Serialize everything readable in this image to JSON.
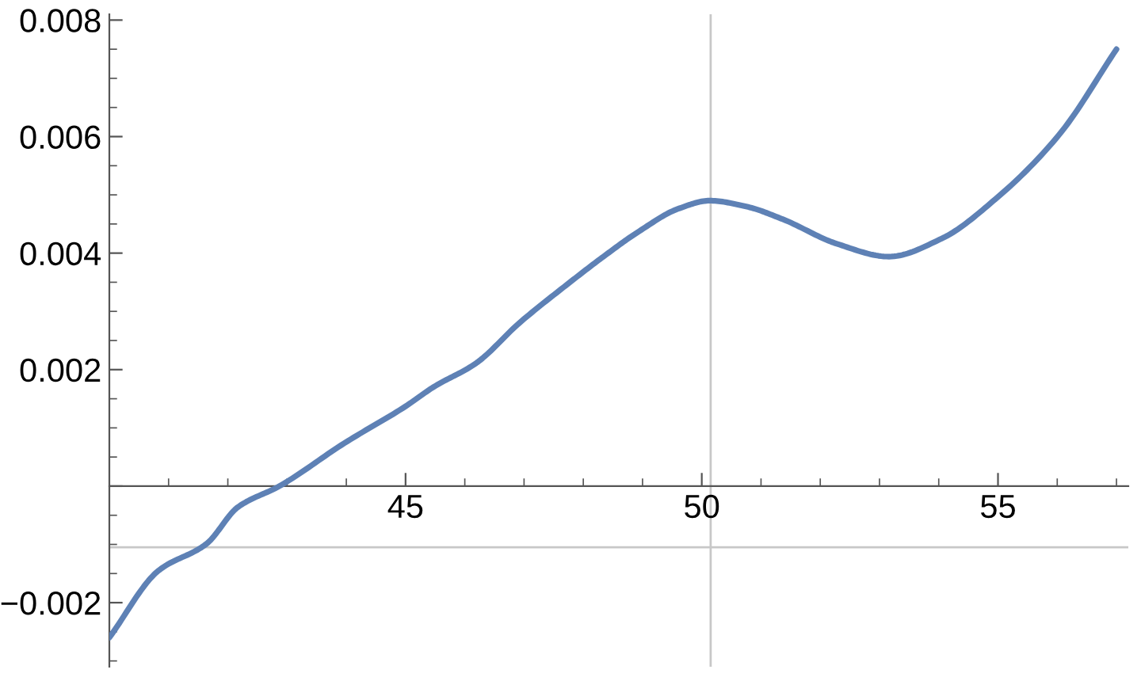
{
  "chart_data": {
    "type": "line",
    "x": [
      40.0,
      40.83,
      41.64,
      42.17,
      42.87,
      43.97,
      45.0,
      45.47,
      46.19,
      46.92,
      47.75,
      48.34,
      48.95,
      49.6,
      50.13,
      50.75,
      51.37,
      52.28,
      53.16,
      54.05,
      54.96,
      56.03,
      57.0
    ],
    "series": [
      {
        "color": "#5e81b5",
        "values": [
          -0.0026,
          -0.00145,
          -0.00099,
          -0.00036,
          0.0,
          0.00074,
          0.00137,
          0.0017,
          0.00211,
          0.0028,
          0.00348,
          0.00394,
          0.00438,
          0.00476,
          0.0049,
          0.0048,
          0.00458,
          0.00416,
          0.00394,
          0.00425,
          0.00493,
          0.00603,
          0.0075
        ]
      }
    ],
    "xlim": [
      40,
      57.2
    ],
    "ylim": [
      -0.0031,
      0.0081
    ],
    "xticks": [
      45,
      50,
      55
    ],
    "yticks": [
      -0.002,
      {
        "value": 0,
        "label": null
      },
      0.002,
      0.004,
      0.006,
      0.008
    ],
    "ref_lines": [
      {
        "axis": "x",
        "value": 50.15,
        "color": "#c8c8c8"
      },
      {
        "axis": "y",
        "value": -0.00105,
        "color": "#c8c8c8"
      }
    ],
    "grid": false,
    "marker": "none",
    "line_style": "solid"
  }
}
